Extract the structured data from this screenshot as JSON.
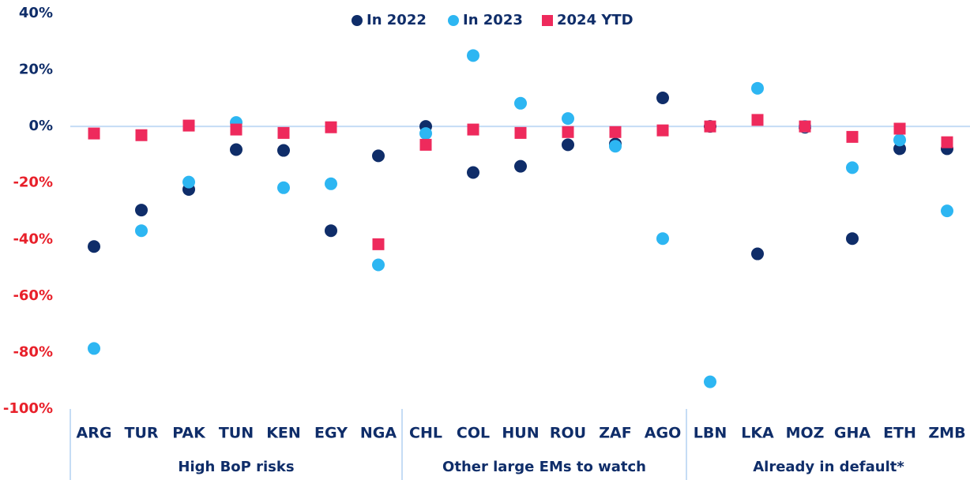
{
  "chart_data": {
    "type": "scatter",
    "groups": [
      {
        "label": "High BoP risks",
        "categories": [
          "ARG",
          "TUR",
          "PAK",
          "TUN",
          "KEN",
          "EGY",
          "NGA"
        ]
      },
      {
        "label": "Other large EMs to watch",
        "categories": [
          "CHL",
          "COL",
          "HUN",
          "ROU",
          "ZAF",
          "AGO"
        ]
      },
      {
        "label": "Already in default*",
        "categories": [
          "LBN",
          "LKA",
          "MOZ",
          "GHA",
          "ETH",
          "ZMB"
        ]
      }
    ],
    "series": [
      {
        "name": "In 2022",
        "color": "#0f2d69",
        "marker": "circle",
        "values": [
          -42.5,
          -29.6,
          -22.3,
          -8.2,
          -8.5,
          -36.9,
          -10.4,
          0,
          -16.3,
          -14.1,
          -6.5,
          -6.2,
          10.1,
          0,
          -45.1,
          -0.3,
          -39.7,
          -7.9,
          -7.9
        ]
      },
      {
        "name": "In 2023",
        "color": "#2db6f2",
        "marker": "circle",
        "values": [
          -78.6,
          -36.9,
          -19.7,
          1.4,
          -21.7,
          -20.3,
          -49,
          -2.5,
          25.1,
          8.2,
          2.8,
          -7,
          -39.7,
          -90.4,
          13.5,
          0,
          -14.6,
          -4.8,
          -29.9
        ]
      },
      {
        "name": "2024 YTD",
        "color": "#ee2a5c",
        "marker": "square",
        "values": [
          -2.5,
          -3.1,
          0.3,
          -1.1,
          -2.3,
          -0.3,
          -41.7,
          -6.5,
          -1.1,
          -2.3,
          -2,
          -2,
          -1.4,
          0,
          2.3,
          0,
          -3.7,
          -0.8,
          -5.6
        ]
      }
    ],
    "ylim": [
      -100,
      40
    ],
    "yticks": [
      {
        "value": -100,
        "label": "-100%"
      },
      {
        "value": -80,
        "label": "-80%"
      },
      {
        "value": -60,
        "label": "-60%"
      },
      {
        "value": -40,
        "label": "-40%"
      },
      {
        "value": -20,
        "label": "-20%"
      },
      {
        "value": 0,
        "label": "0%"
      },
      {
        "value": 20,
        "label": "20%"
      },
      {
        "value": 40,
        "label": "40%"
      }
    ],
    "legend": "top"
  }
}
